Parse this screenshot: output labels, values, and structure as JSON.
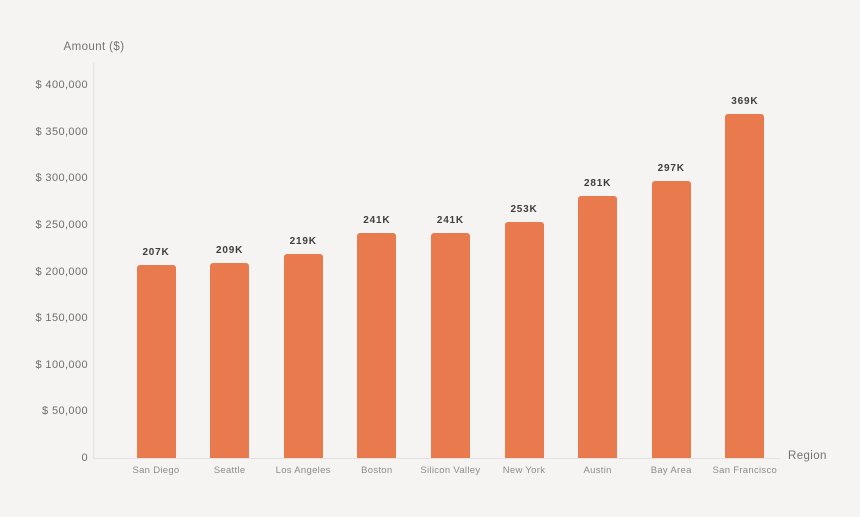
{
  "colors": {
    "background": "#F5F4F2",
    "bar": "#E87A4E",
    "axis_line": "#E3E2E0",
    "tick_text": "#6E6E6E",
    "category_text": "#8C8C8C",
    "value_label_text": "#3E3E3E",
    "axis_title_text": "#737373"
  },
  "chart_data": {
    "type": "bar",
    "title": "",
    "xlabel": "Region",
    "ylabel": "Amount ($)",
    "categories": [
      "San Diego",
      "Seattle",
      "Los Angeles",
      "Boston",
      "Silicon Valley",
      "New York",
      "Austin",
      "Bay Area",
      "San Francisco"
    ],
    "values": [
      207000,
      209000,
      219000,
      241000,
      241000,
      253000,
      281000,
      297000,
      369000
    ],
    "value_labels": [
      "207K",
      "209K",
      "219K",
      "241K",
      "241K",
      "253K",
      "281K",
      "297K",
      "369K"
    ],
    "ylim": [
      0,
      400000
    ],
    "y_ticks": [
      {
        "value": 400000,
        "label": "$ 400,000"
      },
      {
        "value": 350000,
        "label": "$ 350,000"
      },
      {
        "value": 300000,
        "label": "$ 300,000"
      },
      {
        "value": 250000,
        "label": "$ 250,000"
      },
      {
        "value": 200000,
        "label": "$ 200,000"
      },
      {
        "value": 150000,
        "label": "$ 150,000"
      },
      {
        "value": 100000,
        "label": "$ 100,000"
      },
      {
        "value": 50000,
        "label": "$ 50,000"
      },
      {
        "value": 0,
        "label": "0"
      }
    ],
    "grid": false,
    "legend": false
  }
}
